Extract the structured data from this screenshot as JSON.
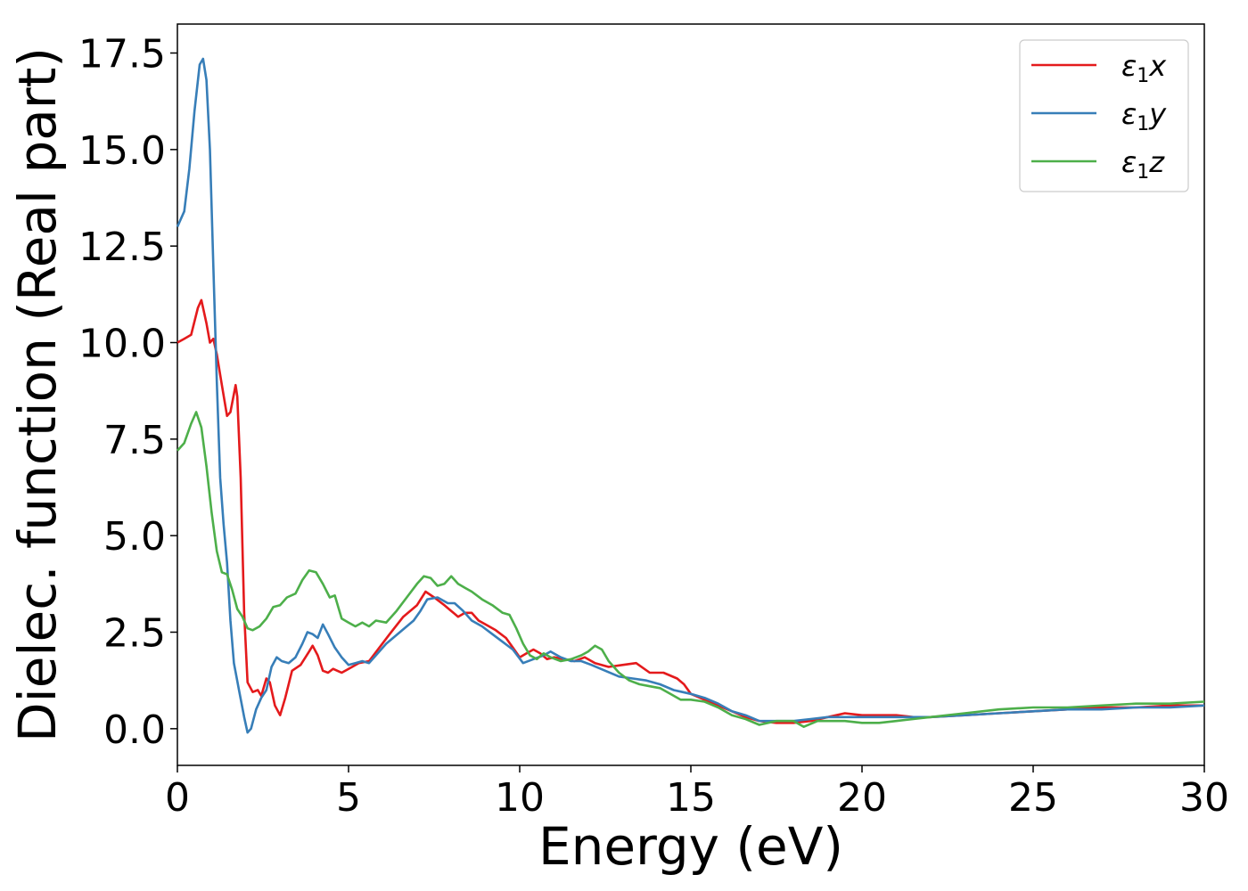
{
  "chart_data": {
    "type": "line",
    "title": "",
    "xlabel": "Energy (eV)",
    "ylabel": "Dielec. function (Real part)",
    "xlim": [
      0,
      30
    ],
    "ylim": [
      -0.95,
      18.25
    ],
    "x_ticks": [
      0,
      5,
      10,
      15,
      20,
      25,
      30
    ],
    "y_ticks": [
      0.0,
      2.5,
      5.0,
      7.5,
      10.0,
      12.5,
      15.0,
      17.5
    ],
    "x_tick_labels": [
      "0",
      "5",
      "10",
      "15",
      "20",
      "25",
      "30"
    ],
    "y_tick_labels": [
      "0.0",
      "2.5",
      "5.0",
      "7.5",
      "10.0",
      "12.5",
      "15.0",
      "17.5"
    ],
    "grid": false,
    "legend_position": "top-right",
    "series": [
      {
        "name": "ε₁x",
        "label_main": "ε",
        "label_sub": "1",
        "label_suffix": "x",
        "color": "#e41a1c",
        "points": [
          [
            0,
            10.0
          ],
          [
            0.2,
            10.1
          ],
          [
            0.4,
            10.2
          ],
          [
            0.6,
            10.9
          ],
          [
            0.7,
            11.1
          ],
          [
            0.85,
            10.5
          ],
          [
            0.95,
            10.0
          ],
          [
            1.05,
            10.1
          ],
          [
            1.15,
            9.7
          ],
          [
            1.3,
            8.9
          ],
          [
            1.45,
            8.1
          ],
          [
            1.55,
            8.2
          ],
          [
            1.7,
            8.9
          ],
          [
            1.75,
            8.6
          ],
          [
            1.85,
            6.5
          ],
          [
            1.95,
            3.0
          ],
          [
            2.05,
            1.2
          ],
          [
            2.2,
            0.95
          ],
          [
            2.35,
            1.0
          ],
          [
            2.45,
            0.85
          ],
          [
            2.6,
            1.3
          ],
          [
            2.7,
            1.2
          ],
          [
            2.85,
            0.6
          ],
          [
            3.0,
            0.35
          ],
          [
            3.15,
            0.8
          ],
          [
            3.35,
            1.5
          ],
          [
            3.6,
            1.65
          ],
          [
            3.85,
            2.0
          ],
          [
            3.95,
            2.15
          ],
          [
            4.1,
            1.9
          ],
          [
            4.25,
            1.5
          ],
          [
            4.4,
            1.45
          ],
          [
            4.55,
            1.55
          ],
          [
            4.8,
            1.45
          ],
          [
            5.0,
            1.55
          ],
          [
            5.3,
            1.7
          ],
          [
            5.6,
            1.75
          ],
          [
            5.9,
            2.1
          ],
          [
            6.2,
            2.45
          ],
          [
            6.6,
            2.9
          ],
          [
            7.0,
            3.2
          ],
          [
            7.25,
            3.55
          ],
          [
            7.5,
            3.4
          ],
          [
            7.8,
            3.2
          ],
          [
            8.0,
            3.05
          ],
          [
            8.2,
            2.9
          ],
          [
            8.4,
            3.0
          ],
          [
            8.6,
            3.0
          ],
          [
            8.8,
            2.8
          ],
          [
            9.0,
            2.7
          ],
          [
            9.3,
            2.55
          ],
          [
            9.6,
            2.35
          ],
          [
            9.8,
            2.1
          ],
          [
            10.0,
            1.85
          ],
          [
            10.2,
            1.95
          ],
          [
            10.4,
            2.05
          ],
          [
            10.6,
            1.95
          ],
          [
            10.8,
            1.8
          ],
          [
            11.0,
            1.85
          ],
          [
            11.3,
            1.8
          ],
          [
            11.6,
            1.75
          ],
          [
            11.9,
            1.85
          ],
          [
            12.2,
            1.7
          ],
          [
            12.6,
            1.6
          ],
          [
            13.0,
            1.65
          ],
          [
            13.4,
            1.7
          ],
          [
            13.8,
            1.45
          ],
          [
            14.2,
            1.45
          ],
          [
            14.6,
            1.3
          ],
          [
            14.8,
            1.15
          ],
          [
            15.0,
            0.9
          ],
          [
            15.4,
            0.75
          ],
          [
            15.8,
            0.6
          ],
          [
            16.2,
            0.45
          ],
          [
            16.6,
            0.3
          ],
          [
            17.0,
            0.2
          ],
          [
            17.5,
            0.15
          ],
          [
            18.0,
            0.15
          ],
          [
            18.5,
            0.2
          ],
          [
            19.0,
            0.3
          ],
          [
            19.5,
            0.4
          ],
          [
            20.0,
            0.35
          ],
          [
            20.5,
            0.35
          ],
          [
            21.0,
            0.35
          ],
          [
            21.5,
            0.3
          ],
          [
            22.0,
            0.3
          ],
          [
            23.0,
            0.35
          ],
          [
            24.0,
            0.4
          ],
          [
            25.0,
            0.45
          ],
          [
            26.0,
            0.5
          ],
          [
            27.0,
            0.55
          ],
          [
            28.0,
            0.55
          ],
          [
            29.0,
            0.6
          ],
          [
            30.0,
            0.6
          ]
        ]
      },
      {
        "name": "ε₁y",
        "label_main": "ε",
        "label_sub": "1",
        "label_suffix": "y",
        "color": "#377eb8",
        "points": [
          [
            0,
            13.0
          ],
          [
            0.2,
            13.4
          ],
          [
            0.35,
            14.5
          ],
          [
            0.5,
            16.0
          ],
          [
            0.65,
            17.2
          ],
          [
            0.75,
            17.35
          ],
          [
            0.85,
            16.8
          ],
          [
            0.95,
            15.0
          ],
          [
            1.05,
            12.0
          ],
          [
            1.15,
            9.0
          ],
          [
            1.25,
            6.5
          ],
          [
            1.35,
            5.3
          ],
          [
            1.45,
            4.3
          ],
          [
            1.55,
            2.8
          ],
          [
            1.65,
            1.7
          ],
          [
            1.8,
            1.0
          ],
          [
            1.95,
            0.3
          ],
          [
            2.05,
            -0.1
          ],
          [
            2.15,
            0.0
          ],
          [
            2.3,
            0.5
          ],
          [
            2.45,
            0.8
          ],
          [
            2.6,
            1.0
          ],
          [
            2.75,
            1.6
          ],
          [
            2.9,
            1.85
          ],
          [
            3.05,
            1.75
          ],
          [
            3.25,
            1.7
          ],
          [
            3.45,
            1.85
          ],
          [
            3.65,
            2.2
          ],
          [
            3.8,
            2.5
          ],
          [
            3.95,
            2.45
          ],
          [
            4.1,
            2.35
          ],
          [
            4.25,
            2.7
          ],
          [
            4.4,
            2.45
          ],
          [
            4.6,
            2.1
          ],
          [
            4.8,
            1.85
          ],
          [
            5.0,
            1.65
          ],
          [
            5.2,
            1.7
          ],
          [
            5.4,
            1.75
          ],
          [
            5.6,
            1.7
          ],
          [
            5.8,
            1.9
          ],
          [
            6.1,
            2.2
          ],
          [
            6.5,
            2.5
          ],
          [
            6.9,
            2.8
          ],
          [
            7.1,
            3.05
          ],
          [
            7.3,
            3.35
          ],
          [
            7.6,
            3.4
          ],
          [
            7.9,
            3.25
          ],
          [
            8.1,
            3.25
          ],
          [
            8.35,
            3.05
          ],
          [
            8.6,
            2.8
          ],
          [
            8.9,
            2.65
          ],
          [
            9.2,
            2.45
          ],
          [
            9.5,
            2.25
          ],
          [
            9.8,
            2.05
          ],
          [
            10.1,
            1.7
          ],
          [
            10.4,
            1.8
          ],
          [
            10.7,
            1.9
          ],
          [
            10.9,
            2.0
          ],
          [
            11.2,
            1.85
          ],
          [
            11.5,
            1.75
          ],
          [
            11.8,
            1.75
          ],
          [
            12.1,
            1.65
          ],
          [
            12.5,
            1.5
          ],
          [
            12.9,
            1.35
          ],
          [
            13.3,
            1.3
          ],
          [
            13.7,
            1.25
          ],
          [
            14.1,
            1.15
          ],
          [
            14.5,
            1.0
          ],
          [
            15.0,
            0.9
          ],
          [
            15.4,
            0.8
          ],
          [
            15.8,
            0.65
          ],
          [
            16.2,
            0.45
          ],
          [
            16.6,
            0.35
          ],
          [
            17.0,
            0.2
          ],
          [
            17.5,
            0.2
          ],
          [
            18.0,
            0.2
          ],
          [
            18.5,
            0.25
          ],
          [
            19.0,
            0.3
          ],
          [
            19.5,
            0.3
          ],
          [
            20.0,
            0.3
          ],
          [
            20.5,
            0.3
          ],
          [
            21.0,
            0.3
          ],
          [
            21.5,
            0.3
          ],
          [
            22.0,
            0.3
          ],
          [
            23.0,
            0.35
          ],
          [
            24.0,
            0.4
          ],
          [
            25.0,
            0.45
          ],
          [
            26.0,
            0.5
          ],
          [
            27.0,
            0.5
          ],
          [
            28.0,
            0.55
          ],
          [
            29.0,
            0.55
          ],
          [
            30.0,
            0.6
          ]
        ]
      },
      {
        "name": "ε₁z",
        "label_main": "ε",
        "label_sub": "1",
        "label_suffix": "z",
        "color": "#4daf4a",
        "points": [
          [
            0,
            7.2
          ],
          [
            0.2,
            7.4
          ],
          [
            0.4,
            7.9
          ],
          [
            0.55,
            8.2
          ],
          [
            0.7,
            7.8
          ],
          [
            0.85,
            6.8
          ],
          [
            1.0,
            5.6
          ],
          [
            1.15,
            4.6
          ],
          [
            1.3,
            4.05
          ],
          [
            1.45,
            4.0
          ],
          [
            1.6,
            3.6
          ],
          [
            1.75,
            3.1
          ],
          [
            1.9,
            2.9
          ],
          [
            2.05,
            2.6
          ],
          [
            2.2,
            2.55
          ],
          [
            2.4,
            2.65
          ],
          [
            2.6,
            2.85
          ],
          [
            2.8,
            3.15
          ],
          [
            3.0,
            3.2
          ],
          [
            3.2,
            3.4
          ],
          [
            3.45,
            3.5
          ],
          [
            3.65,
            3.85
          ],
          [
            3.85,
            4.1
          ],
          [
            4.05,
            4.05
          ],
          [
            4.25,
            3.75
          ],
          [
            4.45,
            3.4
          ],
          [
            4.6,
            3.45
          ],
          [
            4.8,
            2.85
          ],
          [
            5.0,
            2.75
          ],
          [
            5.2,
            2.65
          ],
          [
            5.4,
            2.75
          ],
          [
            5.6,
            2.65
          ],
          [
            5.8,
            2.8
          ],
          [
            6.1,
            2.75
          ],
          [
            6.4,
            3.05
          ],
          [
            6.7,
            3.4
          ],
          [
            7.0,
            3.75
          ],
          [
            7.2,
            3.95
          ],
          [
            7.4,
            3.9
          ],
          [
            7.6,
            3.7
          ],
          [
            7.8,
            3.75
          ],
          [
            8.0,
            3.95
          ],
          [
            8.2,
            3.75
          ],
          [
            8.4,
            3.65
          ],
          [
            8.6,
            3.55
          ],
          [
            8.9,
            3.35
          ],
          [
            9.2,
            3.2
          ],
          [
            9.5,
            3.0
          ],
          [
            9.7,
            2.95
          ],
          [
            9.9,
            2.6
          ],
          [
            10.1,
            2.2
          ],
          [
            10.3,
            1.9
          ],
          [
            10.5,
            1.8
          ],
          [
            10.7,
            1.95
          ],
          [
            10.9,
            1.85
          ],
          [
            11.2,
            1.75
          ],
          [
            11.5,
            1.8
          ],
          [
            11.8,
            1.9
          ],
          [
            12.0,
            2.0
          ],
          [
            12.2,
            2.15
          ],
          [
            12.4,
            2.05
          ],
          [
            12.6,
            1.75
          ],
          [
            12.9,
            1.45
          ],
          [
            13.2,
            1.25
          ],
          [
            13.5,
            1.15
          ],
          [
            13.8,
            1.1
          ],
          [
            14.1,
            1.05
          ],
          [
            14.4,
            0.9
          ],
          [
            14.7,
            0.75
          ],
          [
            15.0,
            0.75
          ],
          [
            15.4,
            0.7
          ],
          [
            15.8,
            0.55
          ],
          [
            16.2,
            0.35
          ],
          [
            16.6,
            0.25
          ],
          [
            17.0,
            0.1
          ],
          [
            17.5,
            0.2
          ],
          [
            18.0,
            0.2
          ],
          [
            18.3,
            0.05
          ],
          [
            18.7,
            0.2
          ],
          [
            19.0,
            0.2
          ],
          [
            19.5,
            0.2
          ],
          [
            20.0,
            0.15
          ],
          [
            20.5,
            0.15
          ],
          [
            21.0,
            0.2
          ],
          [
            21.5,
            0.25
          ],
          [
            22.0,
            0.3
          ],
          [
            23.0,
            0.4
          ],
          [
            24.0,
            0.5
          ],
          [
            25.0,
            0.55
          ],
          [
            26.0,
            0.55
          ],
          [
            27.0,
            0.6
          ],
          [
            28.0,
            0.65
          ],
          [
            29.0,
            0.65
          ],
          [
            30.0,
            0.7
          ]
        ]
      }
    ]
  }
}
